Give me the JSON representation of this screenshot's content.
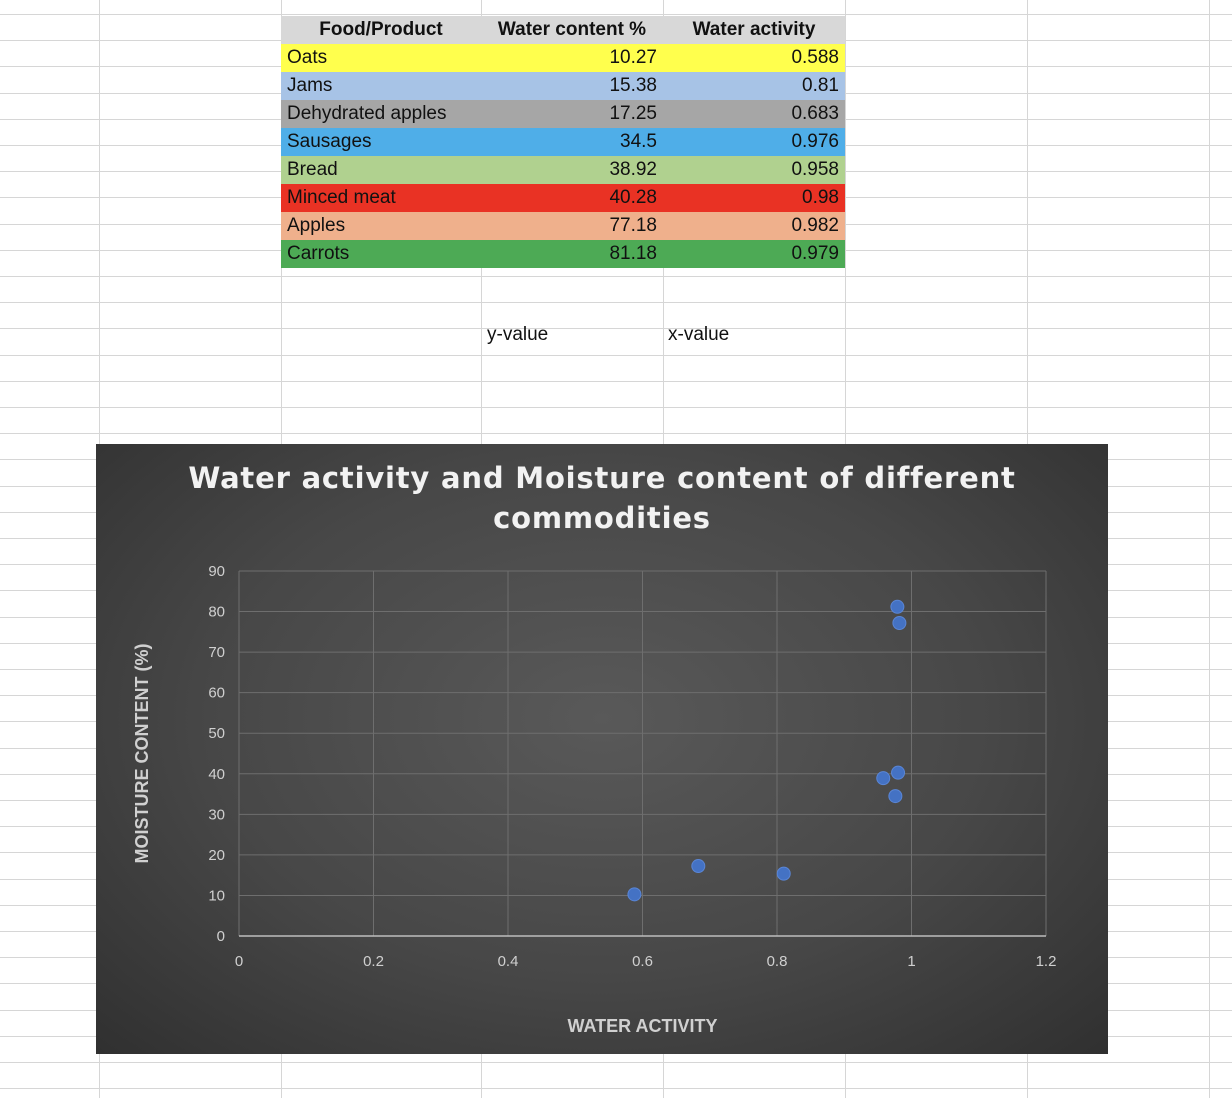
{
  "table": {
    "headers": [
      "Food/Product",
      "Water content %",
      "Water activity"
    ],
    "rows": [
      {
        "name": "Oats",
        "water_content": "10.27",
        "water_activity": "0.588",
        "color": "#ffff4d"
      },
      {
        "name": "Jams",
        "water_content": "15.38",
        "water_activity": "0.81",
        "color": "#a7c3e6"
      },
      {
        "name": "Dehydrated apples",
        "water_content": "17.25",
        "water_activity": "0.683",
        "color": "#a6a6a6"
      },
      {
        "name": "Sausages",
        "water_content": "34.5",
        "water_activity": "0.976",
        "color": "#4faee8"
      },
      {
        "name": "Bread",
        "water_content": "38.92",
        "water_activity": "0.958",
        "color": "#b0d18f"
      },
      {
        "name": "Minced meat",
        "water_content": "40.28",
        "water_activity": "0.98",
        "color": "#e93224"
      },
      {
        "name": "Apples",
        "water_content": "77.18",
        "water_activity": "0.982",
        "color": "#efb08c"
      },
      {
        "name": "Carrots",
        "water_content": "81.18",
        "water_activity": "0.979",
        "color": "#4daa55"
      }
    ]
  },
  "labels": {
    "y_value": "y-value",
    "x_value": "x-value"
  },
  "chart_data": {
    "type": "scatter",
    "title_line1": "Water activity and Moisture content of different",
    "title_line2": "commodities",
    "xlabel": "WATER ACTIVITY",
    "ylabel": "MOISTURE CONTENT (%)",
    "xlim": [
      0,
      1.2
    ],
    "ylim": [
      0,
      90
    ],
    "xticks": [
      "0",
      "0.2",
      "0.4",
      "0.6",
      "0.8",
      "1",
      "1.2"
    ],
    "yticks": [
      "0",
      "10",
      "20",
      "30",
      "40",
      "50",
      "60",
      "70",
      "80",
      "90"
    ],
    "grid": true,
    "marker_color": "#4472c4",
    "points": [
      {
        "x": 0.588,
        "y": 10.27
      },
      {
        "x": 0.81,
        "y": 15.38
      },
      {
        "x": 0.683,
        "y": 17.25
      },
      {
        "x": 0.976,
        "y": 34.5
      },
      {
        "x": 0.958,
        "y": 38.92
      },
      {
        "x": 0.98,
        "y": 40.28
      },
      {
        "x": 0.982,
        "y": 77.18
      },
      {
        "x": 0.979,
        "y": 81.18
      }
    ]
  }
}
